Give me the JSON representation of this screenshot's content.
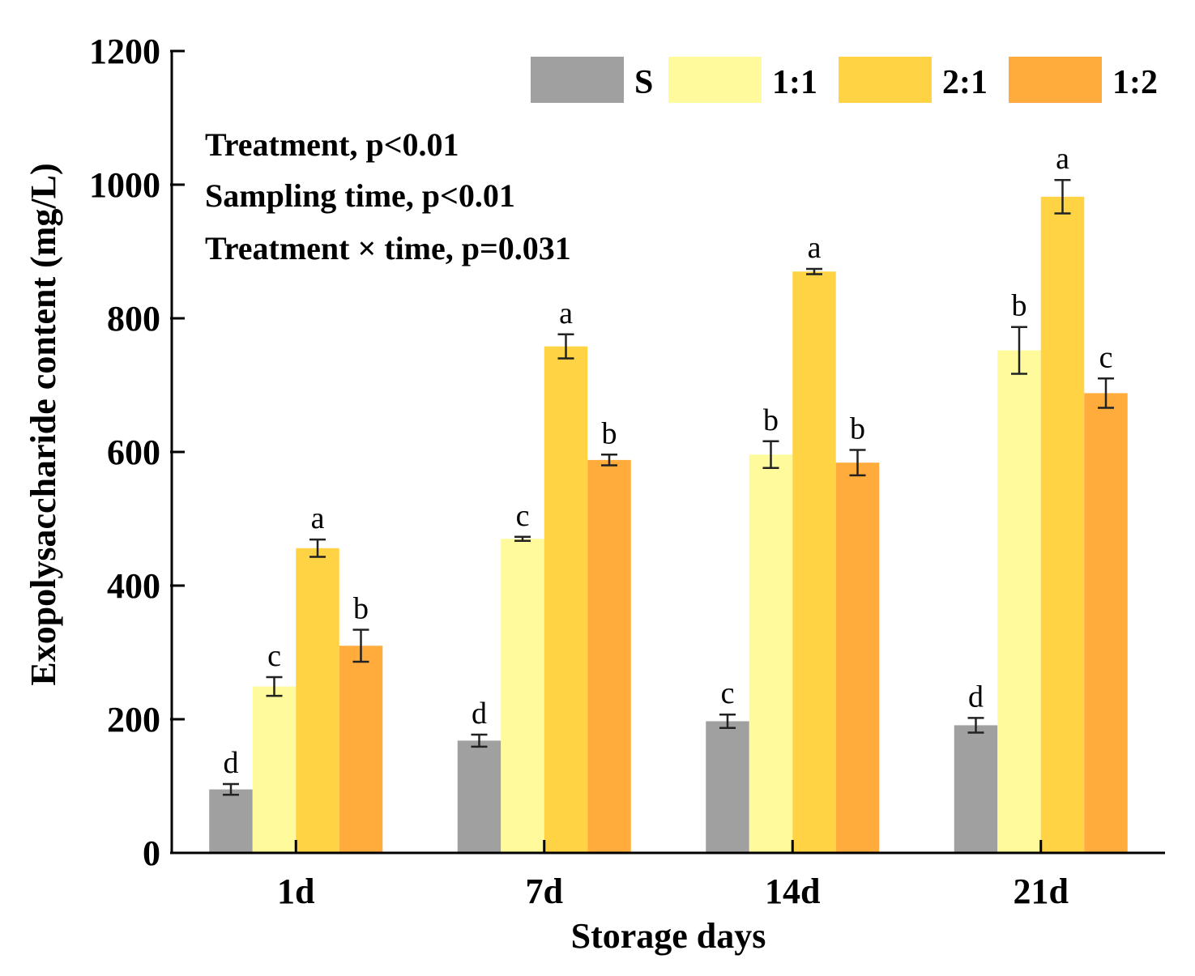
{
  "chart_data": {
    "type": "bar",
    "categories": [
      "1d",
      "7d",
      "14d",
      "21d"
    ],
    "xlabel": "Storage days",
    "ylabel": "Exopolysaccharide content (mg/L)",
    "ylim": [
      0,
      1200
    ],
    "yticks": [
      0,
      200,
      400,
      600,
      800,
      1000,
      1200
    ],
    "grid": false,
    "legend_position": "top-right",
    "series": [
      {
        "name": "S",
        "color": "#a0a0a0",
        "values": [
          95,
          168,
          197,
          191
        ],
        "errors": [
          8,
          9,
          10,
          11
        ],
        "letters": [
          "d",
          "d",
          "c",
          "d"
        ]
      },
      {
        "name": "1:1",
        "color": "#fffa9b",
        "values": [
          249,
          470,
          596,
          752
        ],
        "errors": [
          14,
          3,
          20,
          35
        ],
        "letters": [
          "c",
          "c",
          "b",
          "b"
        ]
      },
      {
        "name": "2:1",
        "color": "#ffd343",
        "values": [
          456,
          758,
          870,
          982
        ],
        "errors": [
          13,
          18,
          4,
          25
        ],
        "letters": [
          "a",
          "a",
          "a",
          "a"
        ]
      },
      {
        "name": "1:2",
        "color": "#ffac3d",
        "values": [
          310,
          588,
          584,
          688
        ],
        "errors": [
          24,
          8,
          19,
          22
        ],
        "letters": [
          "b",
          "b",
          "b",
          "c"
        ]
      }
    ],
    "annotations": [
      "Treatment, p<0.01",
      "Sampling time, p<0.01",
      "Treatment × time, p=0.031"
    ]
  }
}
